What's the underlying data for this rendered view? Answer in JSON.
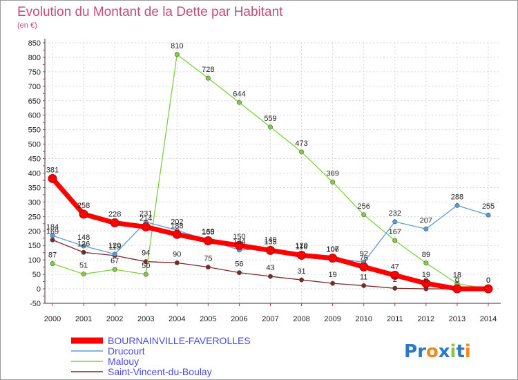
{
  "chart_data": {
    "type": "line",
    "title": "Evolution du Montant de la Dette par Habitant",
    "subtitle": "(en €)",
    "x": [
      "2000",
      "2001",
      "2002",
      "2003",
      "2004",
      "2005",
      "2006",
      "2007",
      "2008",
      "2009",
      "2010",
      "2011",
      "2012",
      "2013",
      "2014"
    ],
    "ylim": [
      -50,
      850
    ],
    "yticks": [
      -50,
      0,
      50,
      100,
      150,
      200,
      250,
      300,
      350,
      400,
      450,
      500,
      550,
      600,
      650,
      700,
      750,
      800,
      850
    ],
    "grid": true,
    "legend_position": "bottom-left",
    "series": [
      {
        "name": "BOURNAINVILLE-FAVEROLLES",
        "color": "#ff0000",
        "values": [
          381,
          258,
          228,
          214,
          188,
          166,
          150,
          133,
          116,
          106,
          76,
          47,
          19,
          0,
          0
        ]
      },
      {
        "name": "Drucourt",
        "color": "#5b9bd5",
        "values": [
          184,
          148,
          120,
          231,
          202,
          169,
          134,
          140,
          120,
          107,
          92,
          232,
          207,
          288,
          255
        ]
      },
      {
        "name": "Malouy",
        "color": "#7fcf3f",
        "values": [
          87,
          51,
          67,
          50,
          810,
          728,
          644,
          559,
          473,
          369,
          256,
          167,
          89,
          18,
          0
        ]
      },
      {
        "name": "Saint-Vincent-du-Boulay",
        "color": "#7a2a2a",
        "values": [
          169,
          126,
          115,
          94,
          90,
          75,
          56,
          43,
          31,
          19,
          11,
          2,
          0,
          0,
          0
        ]
      }
    ],
    "data_labels": {
      "BOURNAINVILLE-FAVEROLLES": [
        "381",
        "258",
        "228",
        "214",
        "188",
        "166",
        "150",
        "133",
        "116",
        "106",
        "76",
        "47",
        "19",
        "0",
        "0"
      ],
      "Drucourt": [
        "184",
        "148",
        "120",
        "231",
        "202",
        "169",
        "134",
        "140",
        "120",
        "107",
        "92",
        "232",
        "207",
        "288",
        "255"
      ],
      "Malouy": [
        "87",
        "51",
        "67",
        "50",
        "810",
        "728",
        "644",
        "559",
        "473",
        "369",
        "256",
        "167",
        "89",
        "18",
        "0"
      ],
      "Saint-Vincent-du-Boulay": [
        "169",
        "126",
        "115",
        "94",
        "90",
        "75",
        "56",
        "43",
        "31",
        "19",
        "11",
        "2",
        "0",
        "0",
        "0"
      ]
    }
  },
  "branding": {
    "text": "Proxiti",
    "letters": [
      "P",
      "r",
      "o",
      "x",
      "i",
      "t",
      "i"
    ],
    "colors": [
      "#2b77c8",
      "#2b77c8",
      "#f08a1c",
      "#2b77c8",
      "#8bc34a",
      "#2b77c8",
      "#f08a1c"
    ]
  }
}
